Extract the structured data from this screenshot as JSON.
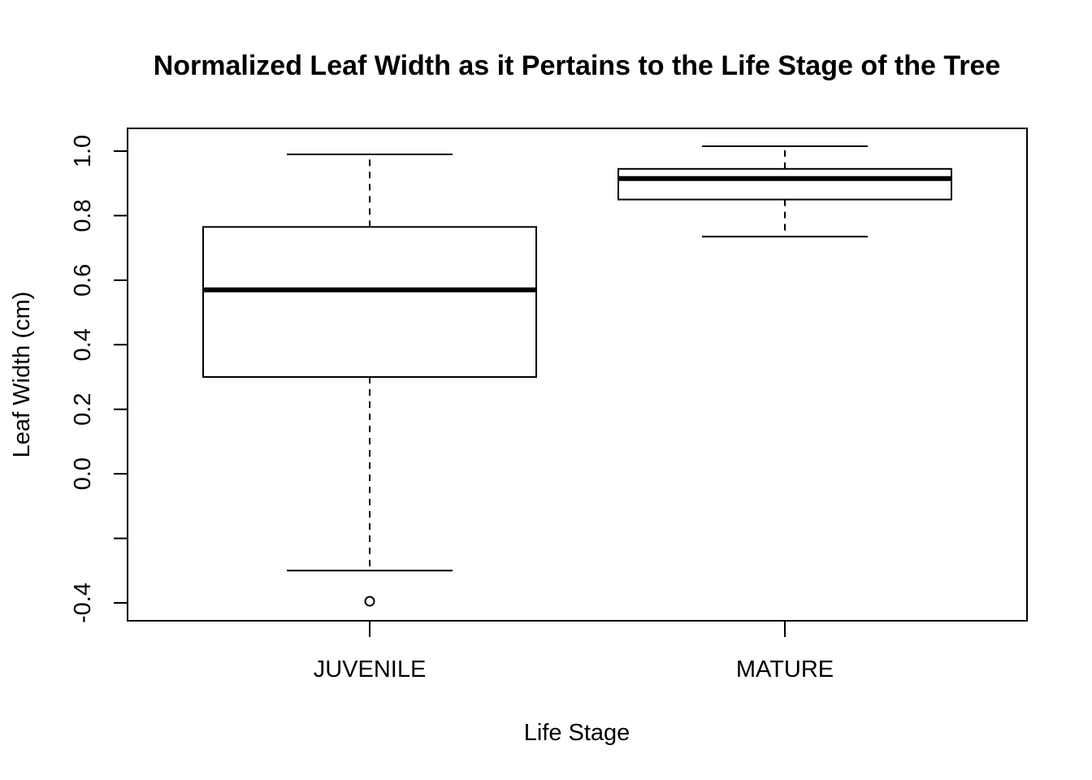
{
  "chart_data": {
    "type": "boxplot",
    "title": "Normalized Leaf Width as it Pertains to the Life Stage of the Tree",
    "xlabel": "Life Stage",
    "ylabel": "Leaf Width (cm)",
    "ylim": [
      -0.45,
      1.08
    ],
    "y_ticks": [
      -0.4,
      -0.2,
      0.0,
      0.2,
      0.4,
      0.6,
      0.8,
      1.0
    ],
    "y_tick_labels": [
      "-0.4",
      "",
      "0.0",
      "0.2",
      "0.4",
      "0.6",
      "0.8",
      "1.0"
    ],
    "categories": [
      "JUVENILE",
      "MATURE"
    ],
    "boxes": [
      {
        "category": "JUVENILE",
        "whisker_low": -0.3,
        "q1": 0.3,
        "median": 0.57,
        "q3": 0.765,
        "whisker_high": 0.99,
        "outliers": [
          -0.395
        ]
      },
      {
        "category": "MATURE",
        "whisker_low": 0.735,
        "q1": 0.85,
        "median": 0.915,
        "q3": 0.945,
        "whisker_high": 1.015,
        "outliers": []
      }
    ],
    "grid": false,
    "legend": "none"
  }
}
